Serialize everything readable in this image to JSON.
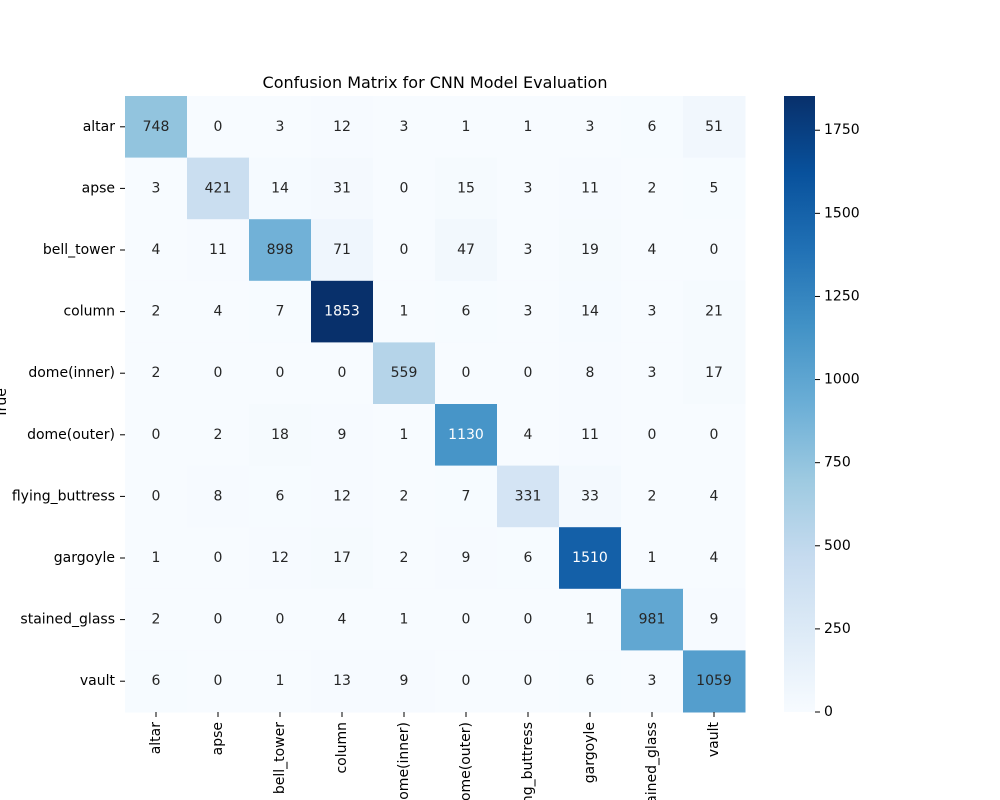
{
  "chart_data": {
    "type": "heatmap",
    "title": "Confusion Matrix for CNN Model Evaluation",
    "ylabel": "True",
    "xlabel": "",
    "row_labels": [
      "altar",
      "apse",
      "bell_tower",
      "column",
      "dome(inner)",
      "dome(outer)",
      "flying_buttress",
      "gargoyle",
      "stained_glass",
      "vault"
    ],
    "col_labels": [
      "altar",
      "apse",
      "bell_tower",
      "column",
      "dome(inner)",
      "dome(outer)",
      "flying_buttress",
      "gargoyle",
      "stained_glass",
      "vault"
    ],
    "values": [
      [
        748,
        0,
        3,
        12,
        3,
        1,
        1,
        3,
        6,
        51
      ],
      [
        3,
        421,
        14,
        31,
        0,
        15,
        3,
        11,
        2,
        5
      ],
      [
        4,
        11,
        898,
        71,
        0,
        47,
        3,
        19,
        4,
        0
      ],
      [
        2,
        4,
        7,
        1853,
        1,
        6,
        3,
        14,
        3,
        21
      ],
      [
        2,
        0,
        0,
        0,
        559,
        0,
        0,
        8,
        3,
        17
      ],
      [
        0,
        2,
        18,
        9,
        1,
        1130,
        4,
        11,
        0,
        0
      ],
      [
        0,
        8,
        6,
        12,
        2,
        7,
        331,
        33,
        2,
        4
      ],
      [
        1,
        0,
        12,
        17,
        2,
        9,
        6,
        1510,
        1,
        4
      ],
      [
        2,
        0,
        0,
        4,
        1,
        0,
        0,
        1,
        981,
        9
      ],
      [
        6,
        0,
        1,
        13,
        9,
        0,
        0,
        6,
        3,
        1059
      ]
    ],
    "colorbar": {
      "colormap": "Blues",
      "range": [
        0,
        1853
      ],
      "ticks": [
        0,
        250,
        500,
        750,
        1000,
        1250,
        1500,
        1750
      ]
    },
    "grid": false,
    "legend": "colorbar-right"
  }
}
